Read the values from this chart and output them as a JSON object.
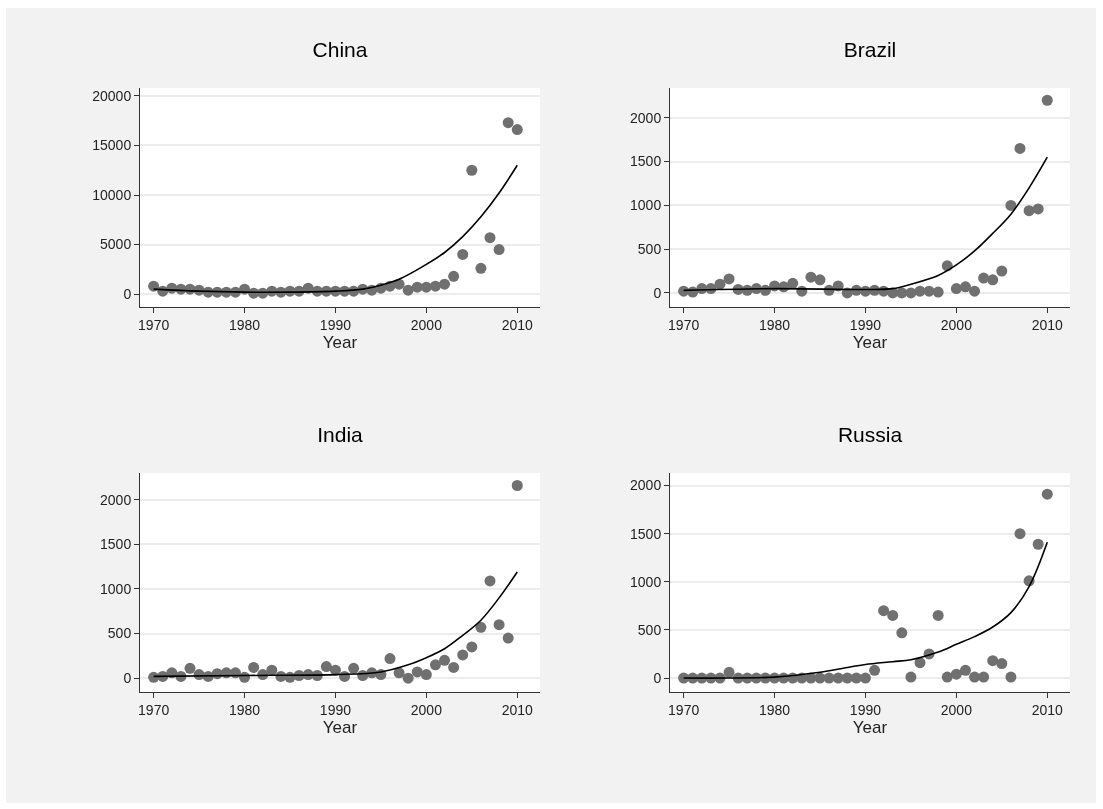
{
  "chart_data": [
    {
      "type": "scatter",
      "title": "China",
      "xlabel": "Year",
      "marker": "circle",
      "grid": "y",
      "xlim": [
        1968.5,
        2012.5
      ],
      "xticks": [
        1970,
        1980,
        1990,
        2000,
        2010
      ],
      "ylim": [
        -1300,
        20800
      ],
      "yticks": [
        0,
        5000,
        10000,
        15000,
        20000
      ],
      "x": [
        1970,
        1971,
        1972,
        1973,
        1974,
        1975,
        1976,
        1977,
        1978,
        1979,
        1980,
        1981,
        1982,
        1983,
        1984,
        1985,
        1986,
        1987,
        1988,
        1989,
        1990,
        1991,
        1992,
        1993,
        1994,
        1995,
        1996,
        1997,
        1998,
        1999,
        2000,
        2001,
        2002,
        2003,
        2004,
        2005,
        2006,
        2007,
        2008,
        2009,
        2010
      ],
      "series": [
        {
          "color": "#707070",
          "values": [
            800,
            300,
            600,
            500,
            500,
            400,
            200,
            200,
            200,
            200,
            500,
            100,
            100,
            300,
            200,
            300,
            300,
            600,
            300,
            300,
            300,
            300,
            300,
            500,
            400,
            600,
            800,
            1000,
            400,
            700,
            700,
            800,
            1000,
            1800,
            4000,
            12500,
            2600,
            5700,
            4500,
            17300,
            16600
          ]
        },
        {
          "type": "line",
          "marker": "none",
          "color": "#000000",
          "x": [
            1970,
            1975,
            1980,
            1985,
            1990,
            1993,
            1995,
            1997,
            2000,
            2002,
            2004,
            2006,
            2008,
            2010
          ],
          "values": [
            500,
            300,
            200,
            200,
            300,
            500,
            900,
            1500,
            3000,
            4200,
            5800,
            7800,
            10200,
            13000
          ]
        }
      ]
    },
    {
      "type": "scatter",
      "title": "Brazil",
      "xlabel": "Year",
      "marker": "circle",
      "grid": "y",
      "xlim": [
        1968.5,
        2012.5
      ],
      "xticks": [
        1970,
        1980,
        1990,
        2000,
        2010
      ],
      "ylim": [
        -160,
        2340
      ],
      "yticks": [
        0,
        500,
        1000,
        1500,
        2000
      ],
      "x": [
        1970,
        1971,
        1972,
        1973,
        1974,
        1975,
        1976,
        1977,
        1978,
        1979,
        1980,
        1981,
        1982,
        1983,
        1984,
        1985,
        1986,
        1987,
        1988,
        1989,
        1990,
        1991,
        1992,
        1993,
        1994,
        1995,
        1996,
        1997,
        1998,
        1999,
        2000,
        2001,
        2002,
        2003,
        2004,
        2005,
        2006,
        2007,
        2008,
        2009,
        2010
      ],
      "series": [
        {
          "color": "#707070",
          "values": [
            20,
            10,
            50,
            50,
            100,
            160,
            40,
            30,
            50,
            30,
            80,
            70,
            110,
            20,
            180,
            150,
            30,
            80,
            0,
            30,
            20,
            30,
            20,
            0,
            0,
            0,
            20,
            20,
            10,
            310,
            50,
            70,
            20,
            170,
            150,
            250,
            1000,
            1650,
            940,
            960,
            2200
          ]
        },
        {
          "type": "line",
          "marker": "none",
          "color": "#000000",
          "x": [
            1970,
            1980,
            1990,
            1993,
            1995,
            1998,
            2000,
            2002,
            2004,
            2006,
            2008,
            2010
          ],
          "values": [
            30,
            50,
            40,
            50,
            100,
            200,
            320,
            480,
            680,
            900,
            1200,
            1550
          ]
        }
      ]
    },
    {
      "type": "scatter",
      "title": "India",
      "xlabel": "Year",
      "marker": "circle",
      "grid": "y",
      "xlim": [
        1968.5,
        2012.5
      ],
      "xticks": [
        1970,
        1980,
        1990,
        2000,
        2010
      ],
      "ylim": [
        -155,
        2300
      ],
      "yticks": [
        0,
        500,
        1000,
        1500,
        2000
      ],
      "x": [
        1970,
        1971,
        1972,
        1973,
        1974,
        1975,
        1976,
        1977,
        1978,
        1979,
        1980,
        1981,
        1982,
        1983,
        1984,
        1985,
        1986,
        1987,
        1988,
        1989,
        1990,
        1991,
        1992,
        1993,
        1994,
        1995,
        1996,
        1997,
        1998,
        1999,
        2000,
        2001,
        2002,
        2003,
        2004,
        2005,
        2006,
        2007,
        2008,
        2009,
        2010
      ],
      "series": [
        {
          "color": "#707070",
          "values": [
            10,
            20,
            60,
            20,
            110,
            40,
            20,
            50,
            60,
            60,
            10,
            120,
            40,
            90,
            20,
            10,
            30,
            40,
            30,
            130,
            90,
            20,
            110,
            30,
            60,
            40,
            220,
            60,
            0,
            70,
            40,
            150,
            200,
            120,
            260,
            350,
            570,
            1090,
            600,
            450,
            2160
          ]
        },
        {
          "type": "line",
          "marker": "none",
          "color": "#000000",
          "x": [
            1970,
            1980,
            1990,
            1995,
            1998,
            2000,
            2002,
            2004,
            2006,
            2008,
            2010
          ],
          "values": [
            20,
            30,
            40,
            70,
            150,
            230,
            330,
            480,
            650,
            900,
            1190
          ]
        }
      ]
    },
    {
      "type": "scatter",
      "title": "Russia",
      "xlabel": "Year",
      "marker": "circle",
      "grid": "y",
      "xlim": [
        1968.5,
        2012.5
      ],
      "xticks": [
        1970,
        1980,
        1990,
        2000,
        2010
      ],
      "ylim": [
        -145,
        2130
      ],
      "yticks": [
        0,
        500,
        1000,
        1500,
        2000
      ],
      "x": [
        1970,
        1971,
        1972,
        1973,
        1974,
        1975,
        1976,
        1977,
        1978,
        1979,
        1980,
        1981,
        1982,
        1983,
        1984,
        1985,
        1986,
        1987,
        1988,
        1989,
        1990,
        1991,
        1992,
        1993,
        1994,
        1995,
        1996,
        1997,
        1998,
        1999,
        2000,
        2001,
        2002,
        2003,
        2004,
        2005,
        2006,
        2007,
        2008,
        2009,
        2010
      ],
      "series": [
        {
          "color": "#707070",
          "values": [
            0,
            0,
            0,
            0,
            0,
            60,
            0,
            0,
            0,
            0,
            0,
            0,
            0,
            0,
            0,
            0,
            0,
            0,
            0,
            0,
            0,
            80,
            700,
            650,
            470,
            10,
            160,
            250,
            650,
            10,
            40,
            80,
            10,
            10,
            180,
            150,
            10,
            1500,
            1010,
            1390,
            1910
          ]
        },
        {
          "type": "line",
          "marker": "none",
          "color": "#000000",
          "x": [
            1970,
            1975,
            1980,
            1985,
            1988,
            1990,
            1993,
            1995,
            1998,
            2000,
            2002,
            2004,
            2006,
            2008,
            2010
          ],
          "values": [
            0,
            0,
            10,
            60,
            110,
            140,
            170,
            190,
            270,
            350,
            430,
            530,
            680,
            950,
            1410
          ]
        }
      ]
    }
  ]
}
